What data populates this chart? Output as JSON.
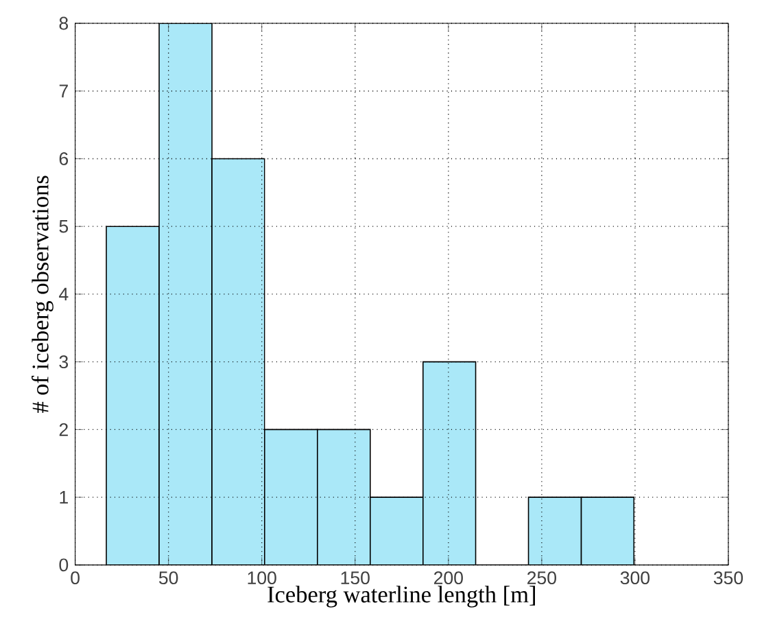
{
  "chart_data": {
    "type": "histogram",
    "xlabel": "Iceberg waterline length [m]",
    "ylabel": "# of iceberg observations",
    "bins": [
      16.7,
      45.0,
      73.3,
      101.5,
      129.8,
      158.1,
      186.4,
      214.6,
      242.9,
      271.2,
      299.4
    ],
    "values": [
      5,
      8,
      6,
      2,
      2,
      1,
      3,
      0,
      1,
      1
    ],
    "color": "#aae8f8",
    "xlim": [
      0,
      350
    ],
    "ylim": [
      0,
      8
    ],
    "xticks": [
      0,
      50,
      100,
      150,
      200,
      250,
      300,
      350
    ],
    "yticks": [
      0,
      1,
      2,
      3,
      4,
      5,
      6,
      7,
      8
    ],
    "grid": true
  }
}
